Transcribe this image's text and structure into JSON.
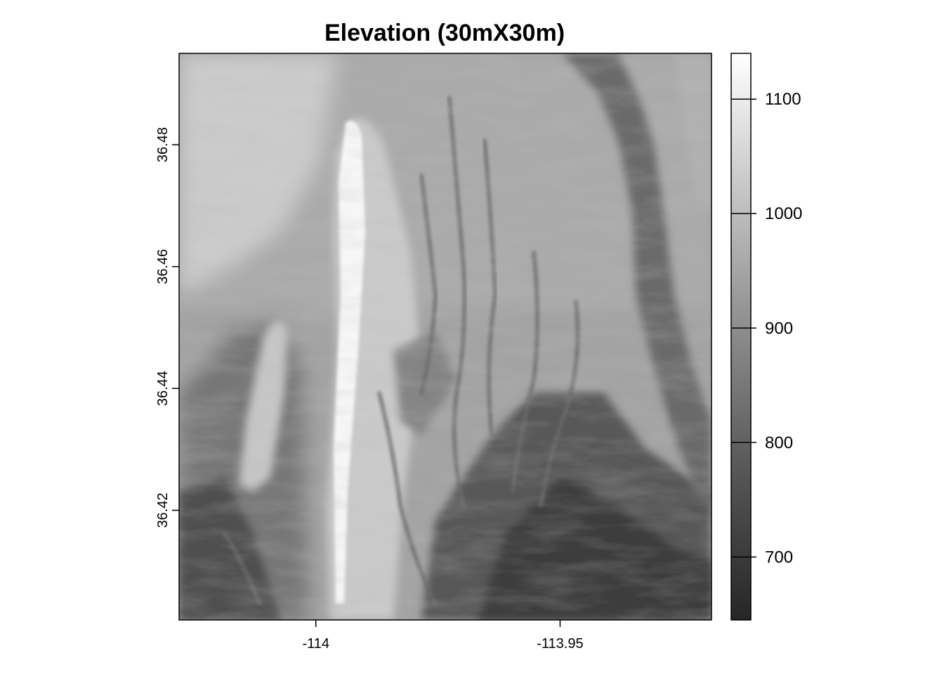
{
  "chart_data": {
    "type": "heatmap",
    "title": "Elevation (30mX30m)",
    "xlabel": "",
    "ylabel": "",
    "xlim": [
      -114.028,
      -113.919
    ],
    "ylim": [
      36.402,
      36.495
    ],
    "x_ticks": [
      -114,
      -113.95
    ],
    "x_tick_labels": [
      "-114",
      "-113.95"
    ],
    "y_ticks": [
      36.42,
      36.44,
      36.46,
      36.48
    ],
    "y_tick_labels": [
      "36.42",
      "36.44",
      "36.46",
      "36.48"
    ],
    "colorbar": {
      "range": [
        645,
        1140
      ],
      "ticks": [
        700,
        800,
        900,
        1000,
        1100
      ],
      "tick_labels": [
        "700",
        "800",
        "900",
        "1000",
        "1100"
      ],
      "colors": [
        "#262626",
        "#ffffff"
      ]
    },
    "colormap": "grayscale (low = dark, high = light)",
    "features": [
      {
        "name": "central ridge",
        "x_range": [
          -113.996,
          -113.985
        ],
        "y_range": [
          36.405,
          36.488
        ],
        "approx_value": 1120
      },
      {
        "name": "western secondary ridge",
        "x_range": [
          -114.014,
          -114.005
        ],
        "y_range": [
          36.41,
          36.455
        ],
        "approx_value": 1000
      },
      {
        "name": "eastern main channel",
        "x_range": [
          -113.935,
          -113.922
        ],
        "y_range": [
          36.42,
          36.495
        ],
        "approx_value": 800
      },
      {
        "name": "southern drainage basin",
        "x_range": [
          -113.97,
          -113.93
        ],
        "y_range": [
          36.402,
          36.44
        ],
        "approx_value": 720
      },
      {
        "name": "northwest highlands",
        "x_range": [
          -114.028,
          -114.0
        ],
        "y_range": [
          36.475,
          36.495
        ],
        "approx_value": 1060
      }
    ]
  }
}
